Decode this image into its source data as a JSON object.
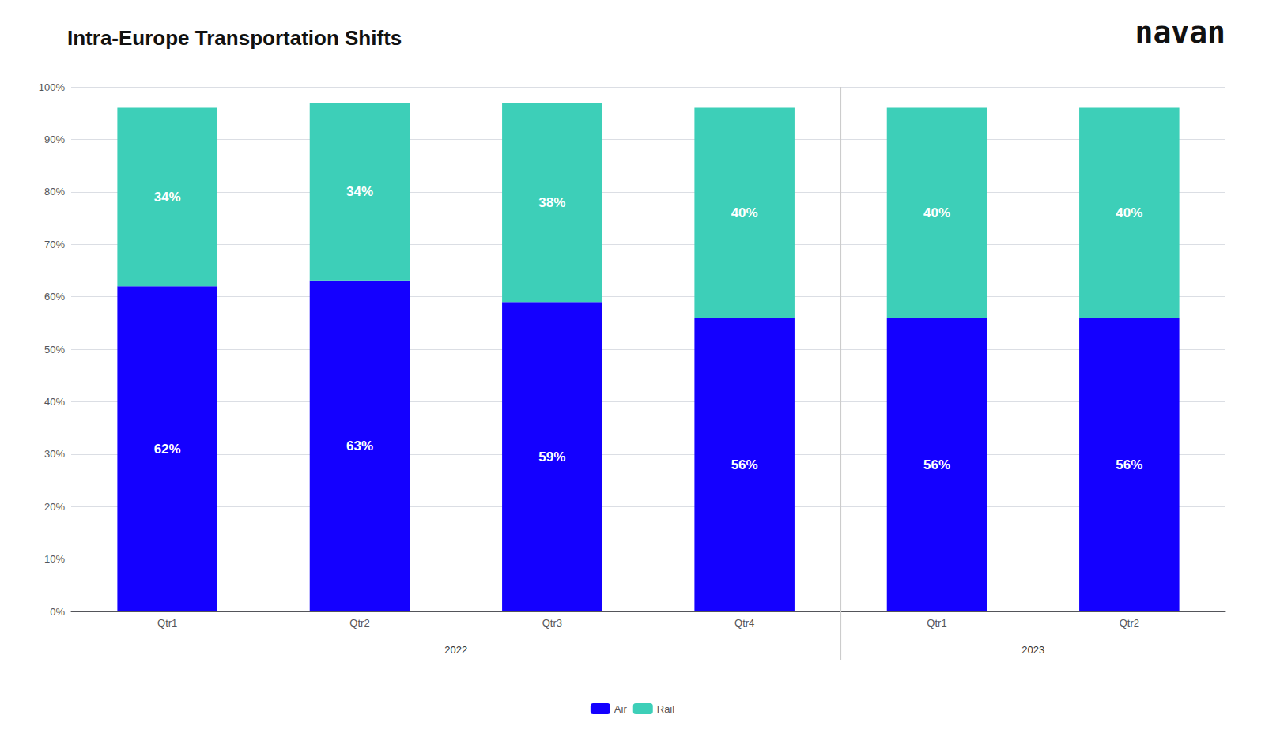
{
  "chart_data": {
    "type": "bar",
    "title": "Intra-Europe Transportation Shifts",
    "logo_text": "navan",
    "categories": [
      "Qtr1",
      "Qtr2",
      "Qtr3",
      "Qtr4",
      "Qtr1",
      "Qtr2"
    ],
    "category_groups": [
      {
        "label": "2022",
        "count": 4
      },
      {
        "label": "2023",
        "count": 2
      }
    ],
    "series": [
      {
        "name": "Air",
        "color": "#1400FF",
        "values": [
          62,
          63,
          59,
          56,
          56,
          56
        ],
        "value_labels": [
          "62%",
          "63%",
          "59%",
          "56%",
          "56%",
          "56%"
        ]
      },
      {
        "name": "Rail",
        "color": "#3DCFB8",
        "values": [
          34,
          34,
          38,
          40,
          40,
          40
        ],
        "value_labels": [
          "34%",
          "34%",
          "38%",
          "40%",
          "40%",
          "40%"
        ]
      }
    ],
    "stacked": true,
    "data_labels": true,
    "ylim": [
      0,
      100
    ],
    "yticks": [
      {
        "value": 0,
        "label": "0%"
      },
      {
        "value": 10,
        "label": "10%"
      },
      {
        "value": 20,
        "label": "20%"
      },
      {
        "value": 30,
        "label": "30%"
      },
      {
        "value": 40,
        "label": "40%"
      },
      {
        "value": 50,
        "label": "50%"
      },
      {
        "value": 60,
        "label": "60%"
      },
      {
        "value": 70,
        "label": "70%"
      },
      {
        "value": 80,
        "label": "80%"
      },
      {
        "value": 90,
        "label": "90%"
      },
      {
        "value": 100,
        "label": "100%"
      }
    ],
    "grid": true,
    "legend": "bottom"
  }
}
